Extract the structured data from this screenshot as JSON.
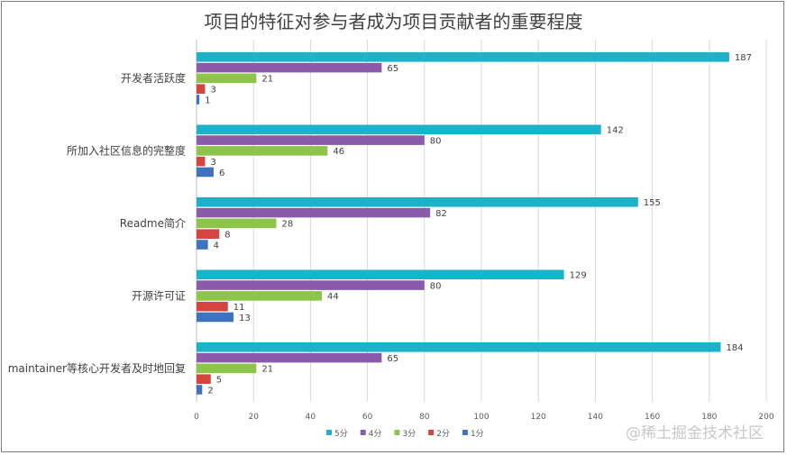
{
  "chart_data": {
    "type": "bar",
    "orientation": "horizontal",
    "title": "项目的特征对参与者成为项目贡献者的重要程度",
    "categories": [
      "开发者活跃度",
      "所加入社区信息的完整度",
      "Readme简介",
      "开源许可证",
      "maintainer等核心开发者及时地回复"
    ],
    "series": [
      {
        "name": "5分",
        "color": "#1cb2c9",
        "values": [
          187,
          142,
          155,
          129,
          184
        ]
      },
      {
        "name": "4分",
        "color": "#8a5ba8",
        "values": [
          65,
          80,
          82,
          80,
          65
        ]
      },
      {
        "name": "3分",
        "color": "#8dc54b",
        "values": [
          21,
          46,
          28,
          44,
          21
        ]
      },
      {
        "name": "2分",
        "color": "#d5443f",
        "values": [
          3,
          3,
          8,
          11,
          5
        ]
      },
      {
        "name": "1分",
        "color": "#3e73bf",
        "values": [
          1,
          6,
          4,
          13,
          2
        ]
      }
    ],
    "xlim": [
      0,
      200
    ],
    "xticks": [
      0,
      20,
      40,
      60,
      80,
      100,
      120,
      140,
      160,
      180,
      200
    ],
    "grid": true,
    "legend": "bottom"
  },
  "watermark": "@稀土掘金技术社区"
}
